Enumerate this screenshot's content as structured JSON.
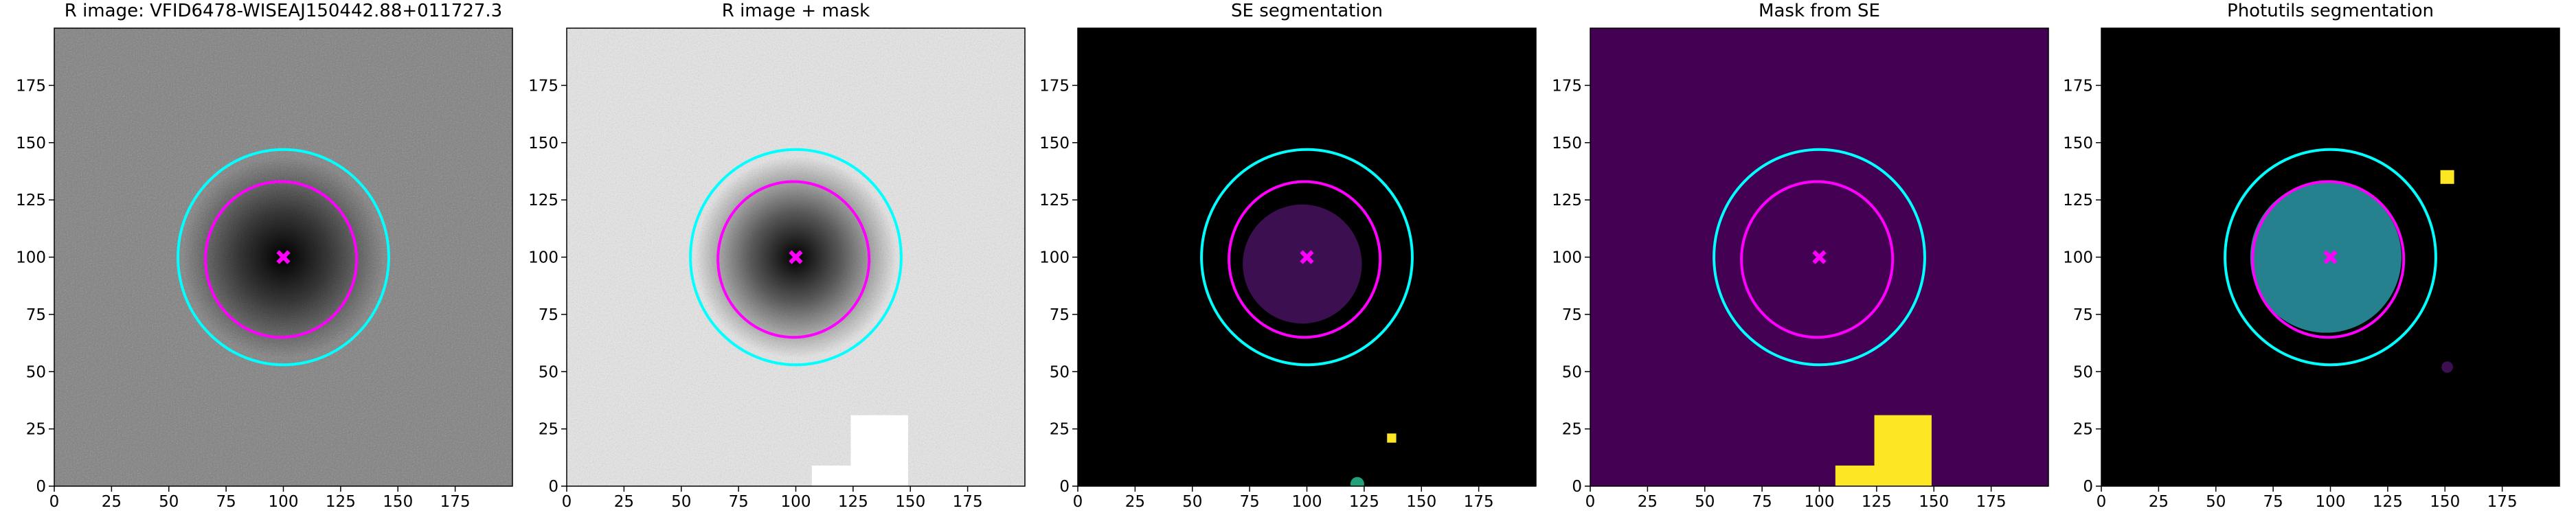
{
  "chart_data": [
    {
      "type": "image",
      "title": "R image: VFID6478-WISEAJ150442.88+011727.3",
      "background": "#808080",
      "noise": true,
      "glow": "#000000",
      "xlim": [
        0,
        200
      ],
      "ylim": [
        0,
        200
      ],
      "xticks": [
        0,
        25,
        50,
        75,
        100,
        125,
        150,
        175
      ],
      "yticks": [
        0,
        25,
        50,
        75,
        100,
        125,
        150,
        175
      ],
      "regions": [],
      "disks": [],
      "ellipses": [
        {
          "color": "#00ffff",
          "cx": 100,
          "cy": 100,
          "rx": 46,
          "ry": 47
        },
        {
          "color": "#ff00ff",
          "cx": 99,
          "cy": 99,
          "rx": 33,
          "ry": 34
        }
      ],
      "marker": {
        "x": 100,
        "y": 100,
        "color": "#ff00ff"
      }
    },
    {
      "type": "image",
      "title": "R image + mask",
      "background": "#e6e6e6",
      "noise": true,
      "glow": "#000000",
      "xlim": [
        0,
        200
      ],
      "ylim": [
        0,
        200
      ],
      "xticks": [
        0,
        25,
        50,
        75,
        100,
        125,
        150,
        175
      ],
      "yticks": [
        0,
        25,
        50,
        75,
        100,
        125,
        150,
        175
      ],
      "regions": [
        {
          "color": "#ffffff",
          "x0": 124,
          "x1": 149,
          "y0": 9,
          "y1": 31
        },
        {
          "color": "#ffffff",
          "x0": 107,
          "x1": 149,
          "y0": 0,
          "y1": 9
        }
      ],
      "disks": [],
      "ellipses": [
        {
          "color": "#00ffff",
          "cx": 100,
          "cy": 100,
          "rx": 46,
          "ry": 47
        },
        {
          "color": "#ff00ff",
          "cx": 99,
          "cy": 99,
          "rx": 33,
          "ry": 34
        }
      ],
      "marker": {
        "x": 100,
        "y": 100,
        "color": "#ff00ff"
      }
    },
    {
      "type": "image",
      "title": "SE segmentation",
      "background": "#000000",
      "noise": false,
      "xlim": [
        0,
        200
      ],
      "ylim": [
        0,
        200
      ],
      "xticks": [
        0,
        25,
        50,
        75,
        100,
        125,
        150,
        175
      ],
      "yticks": [
        0,
        25,
        50,
        75,
        100,
        125,
        150,
        175
      ],
      "regions": [
        {
          "color": "#fde725",
          "x0": 135,
          "x1": 139,
          "y0": 19,
          "y1": 23
        }
      ],
      "disks": [
        {
          "color": "#3b0f50",
          "cx": 98,
          "cy": 97,
          "r": 26
        },
        {
          "color": "#21a07a",
          "cx": 122,
          "cy": 1,
          "r": 3
        }
      ],
      "ellipses": [
        {
          "color": "#00ffff",
          "cx": 100,
          "cy": 100,
          "rx": 46,
          "ry": 47
        },
        {
          "color": "#ff00ff",
          "cx": 99,
          "cy": 99,
          "rx": 33,
          "ry": 34
        }
      ],
      "marker": {
        "x": 100,
        "y": 100,
        "color": "#ff00ff"
      }
    },
    {
      "type": "image",
      "title": "Mask from SE",
      "background": "#440154",
      "noise": false,
      "xlim": [
        0,
        200
      ],
      "ylim": [
        0,
        200
      ],
      "xticks": [
        0,
        25,
        50,
        75,
        100,
        125,
        150,
        175
      ],
      "yticks": [
        0,
        25,
        50,
        75,
        100,
        125,
        150,
        175
      ],
      "regions": [
        {
          "color": "#fde725",
          "x0": 124,
          "x1": 149,
          "y0": 9,
          "y1": 31
        },
        {
          "color": "#fde725",
          "x0": 107,
          "x1": 149,
          "y0": 0,
          "y1": 9
        }
      ],
      "disks": [],
      "ellipses": [
        {
          "color": "#00ffff",
          "cx": 100,
          "cy": 100,
          "rx": 46,
          "ry": 47
        },
        {
          "color": "#ff00ff",
          "cx": 99,
          "cy": 99,
          "rx": 33,
          "ry": 34
        }
      ],
      "marker": {
        "x": 100,
        "y": 100,
        "color": "#ff00ff"
      }
    },
    {
      "type": "image",
      "title": "Photutils segmentation",
      "background": "#000000",
      "noise": false,
      "xlim": [
        0,
        200
      ],
      "ylim": [
        0,
        200
      ],
      "xticks": [
        0,
        25,
        50,
        75,
        100,
        125,
        150,
        175
      ],
      "yticks": [
        0,
        25,
        50,
        75,
        100,
        125,
        150,
        175
      ],
      "regions": [
        {
          "color": "#fde725",
          "x0": 148,
          "x1": 154,
          "y0": 132,
          "y1": 138
        }
      ],
      "disks": [
        {
          "color": "#26818e",
          "cx": 98,
          "cy": 100,
          "r": 33
        },
        {
          "color": "#3b0f50",
          "cx": 151,
          "cy": 52,
          "r": 2.5
        }
      ],
      "ellipses": [
        {
          "color": "#00ffff",
          "cx": 100,
          "cy": 100,
          "rx": 46,
          "ry": 47
        },
        {
          "color": "#ff00ff",
          "cx": 99,
          "cy": 99,
          "rx": 33,
          "ry": 34
        }
      ],
      "marker": {
        "x": 100,
        "y": 100,
        "color": "#ff00ff"
      }
    }
  ]
}
